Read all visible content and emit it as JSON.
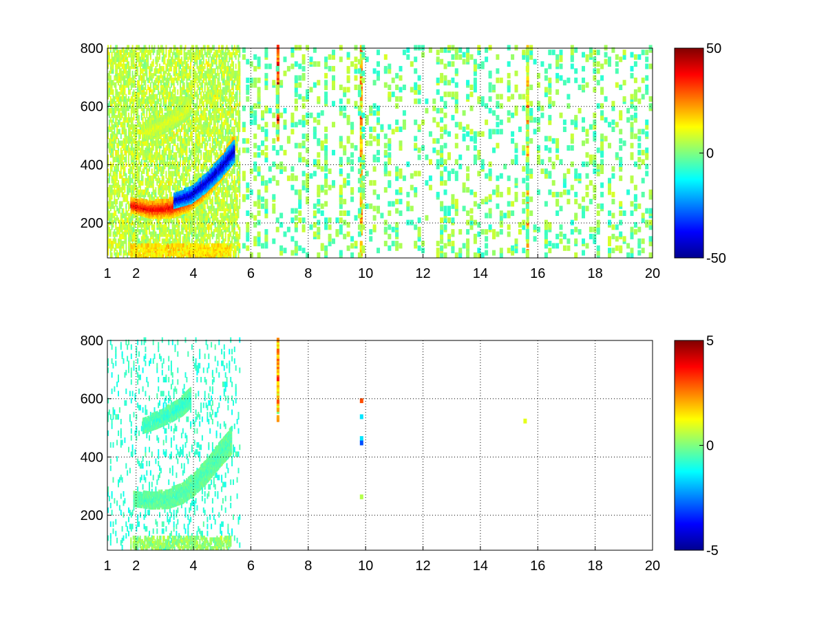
{
  "chart_data": [
    {
      "type": "heatmap",
      "title": "",
      "xlabel": "",
      "ylabel": "",
      "xlim": [
        1,
        20
      ],
      "ylim": [
        80,
        800
      ],
      "grid": true,
      "x_ticks": [
        1,
        2,
        4,
        6,
        8,
        10,
        12,
        14,
        16,
        18,
        20
      ],
      "x_tick_labels": [
        "1",
        "2",
        "4",
        "6",
        "8",
        "10",
        "12",
        "14",
        "16",
        "18",
        "20"
      ],
      "y_ticks": [
        200,
        400,
        600,
        800
      ],
      "y_tick_labels": [
        "200",
        "400",
        "600",
        "800"
      ],
      "colormap": "jet",
      "colorbar": {
        "range": [
          -50,
          50
        ],
        "tick_values": [
          -50,
          0,
          50
        ],
        "tick_labels": [
          "-50",
          "0",
          "50"
        ],
        "placement": "right"
      },
      "features": {
        "dense_region_x": [
          1,
          5.6
        ],
        "arcs": [
          {
            "x": [
              1.8,
              2.5,
              3.2,
              3.8,
              4.2,
              4.6,
              5.0,
              5.4
            ],
            "y": [
              255,
              240,
              245,
              270,
              300,
              340,
              390,
              450
            ],
            "value": 40
          },
          {
            "x": [
              3.3,
              3.9,
              4.4,
              4.9,
              5.4
            ],
            "y": [
              270,
              290,
              330,
              380,
              440
            ],
            "value": -45
          },
          {
            "x": [
              2.2,
              2.7,
              3.2,
              3.6,
              3.9
            ],
            "y": [
              500,
              520,
              545,
              570,
              600
            ],
            "value": 10
          }
        ],
        "vertical_stripes": [
          {
            "x": 6.9,
            "y_min": 480,
            "y_max": 800,
            "value": 30
          },
          {
            "x": 9.8,
            "y_min": 80,
            "y_max": 800,
            "value": 15
          },
          {
            "x": 15.6,
            "y_min": 80,
            "y_max": 800,
            "value": 15
          }
        ]
      }
    },
    {
      "type": "heatmap",
      "title": "",
      "xlabel": "",
      "ylabel": "",
      "xlim": [
        1,
        20
      ],
      "ylim": [
        80,
        800
      ],
      "grid": true,
      "x_ticks": [
        1,
        2,
        4,
        6,
        8,
        10,
        12,
        14,
        16,
        18,
        20
      ],
      "x_tick_labels": [
        "1",
        "2",
        "4",
        "6",
        "8",
        "10",
        "12",
        "14",
        "16",
        "18",
        "20"
      ],
      "y_ticks": [
        200,
        400,
        600,
        800
      ],
      "y_tick_labels": [
        "200",
        "400",
        "600",
        "800"
      ],
      "colormap": "jet",
      "colorbar": {
        "range": [
          -5,
          5
        ],
        "tick_values": [
          -5,
          0,
          5
        ],
        "tick_labels": [
          "-5",
          "0",
          "5"
        ],
        "placement": "right"
      },
      "features": {
        "dense_region_x": [
          1,
          5.6
        ],
        "arcs": [
          {
            "x": [
              1.9,
              2.5,
              3.1,
              3.6,
              4.0,
              4.4,
              4.8,
              5.3
            ],
            "y": [
              250,
              245,
              250,
              270,
              300,
              340,
              390,
              450
            ],
            "value": -0.5
          },
          {
            "x": [
              2.2,
              2.7,
              3.2,
              3.6,
              3.9
            ],
            "y": [
              500,
              520,
              545,
              570,
              600
            ],
            "value": -0.8
          }
        ],
        "vertical_stripes": [
          {
            "x": 6.9,
            "y_min": 520,
            "y_max": 800,
            "value": 2
          }
        ],
        "isolated_points": [
          {
            "x": 9.8,
            "y": 585,
            "value": 3
          },
          {
            "x": 9.8,
            "y": 530,
            "value": -1.5
          },
          {
            "x": 9.8,
            "y": 455,
            "value": -1.5
          },
          {
            "x": 9.8,
            "y": 440,
            "value": -3
          },
          {
            "x": 9.8,
            "y": 255,
            "value": 0.5
          },
          {
            "x": 15.5,
            "y": 515,
            "value": 1
          }
        ]
      }
    }
  ]
}
